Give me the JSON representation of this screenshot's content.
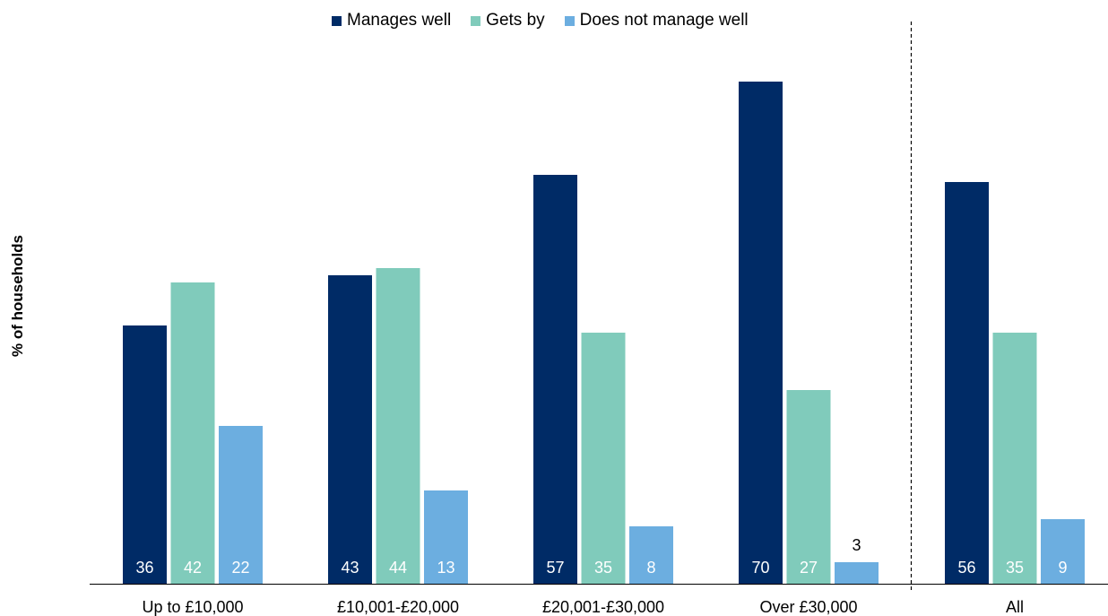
{
  "chart_data": {
    "type": "bar",
    "title": "",
    "xlabel": "",
    "ylabel": "% of households",
    "ylim": [
      0,
      75
    ],
    "grid": false,
    "legend_position": "top",
    "categories": [
      "Up to £10,000",
      "£10,001-£20,000",
      "£20,001-£30,000",
      "Over £30,000",
      "All"
    ],
    "series": [
      {
        "name": "Manages well",
        "color": "#002b66",
        "values": [
          36,
          43,
          57,
          70,
          56
        ]
      },
      {
        "name": "Gets by",
        "color": "#80cbbb",
        "values": [
          42,
          44,
          35,
          27,
          35
        ]
      },
      {
        "name": "Does not manage well",
        "color": "#6caee0",
        "values": [
          22,
          13,
          8,
          3,
          9
        ]
      }
    ],
    "separator_before_category": "All"
  }
}
